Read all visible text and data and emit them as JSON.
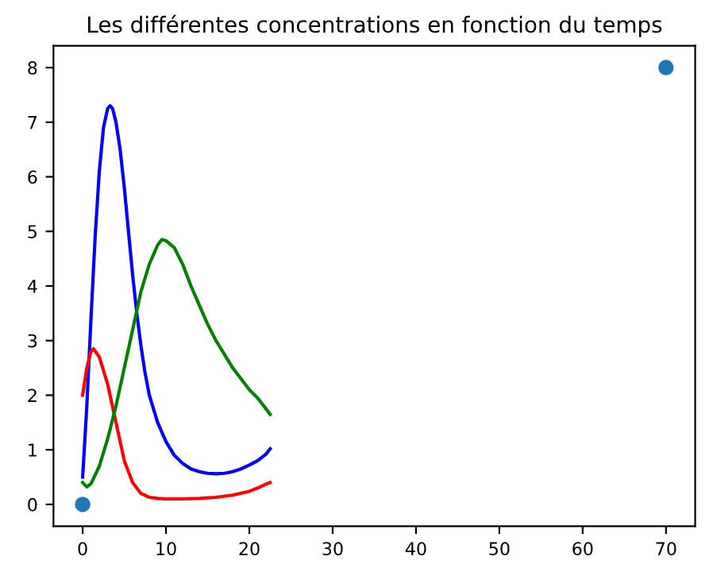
{
  "chart_data": {
    "type": "line",
    "title": "Les différentes concentrations en fonction du temps",
    "series": [
      {
        "color": "#0000ff",
        "x": [
          0,
          0.5,
          1,
          1.5,
          2,
          2.5,
          3,
          3.3,
          3.6,
          4,
          4.5,
          5,
          5.5,
          6,
          6.5,
          7,
          7.5,
          8,
          9,
          10,
          11,
          12,
          13,
          14,
          15,
          16,
          17,
          18,
          19,
          20,
          21,
          22,
          22.5
        ],
        "values": [
          0.5,
          1.8,
          3.4,
          4.9,
          6.1,
          6.9,
          7.25,
          7.3,
          7.25,
          7.0,
          6.5,
          5.8,
          5.0,
          4.2,
          3.5,
          2.9,
          2.4,
          2.0,
          1.5,
          1.15,
          0.9,
          0.75,
          0.65,
          0.6,
          0.57,
          0.56,
          0.57,
          0.6,
          0.65,
          0.72,
          0.8,
          0.92,
          1.02
        ]
      },
      {
        "color": "#ff0000",
        "x": [
          0,
          0.5,
          1,
          1.3,
          2,
          3,
          4,
          5,
          6,
          7,
          8,
          9,
          10,
          12,
          14,
          16,
          18,
          20,
          21,
          22,
          22.5
        ],
        "values": [
          2.0,
          2.5,
          2.8,
          2.85,
          2.7,
          2.2,
          1.5,
          0.8,
          0.4,
          0.2,
          0.13,
          0.11,
          0.1,
          0.1,
          0.11,
          0.13,
          0.17,
          0.24,
          0.3,
          0.37,
          0.4
        ]
      },
      {
        "color": "#008000",
        "x": [
          0,
          0.5,
          1,
          2,
          3,
          4,
          5,
          6,
          7,
          8,
          9,
          9.5,
          10,
          11,
          12,
          13,
          14,
          15,
          16,
          17,
          18,
          19,
          20,
          21,
          22,
          22.5
        ],
        "values": [
          0.4,
          0.32,
          0.38,
          0.7,
          1.2,
          1.8,
          2.5,
          3.2,
          3.9,
          4.4,
          4.75,
          4.85,
          4.83,
          4.7,
          4.4,
          4.0,
          3.65,
          3.3,
          3.0,
          2.75,
          2.5,
          2.3,
          2.1,
          1.95,
          1.75,
          1.65
        ]
      },
      {
        "type": "scatter",
        "color": "#1f77b4",
        "x": [
          0,
          70
        ],
        "values": [
          0,
          8
        ]
      }
    ],
    "xlim": [
      -3.5,
      73.5
    ],
    "ylim": [
      -0.4,
      8.4
    ],
    "xticks": [
      0,
      10,
      20,
      30,
      40,
      50,
      60,
      70
    ],
    "yticks": [
      0,
      1,
      2,
      3,
      4,
      5,
      6,
      7,
      8
    ],
    "grid": false,
    "legend": false
  }
}
